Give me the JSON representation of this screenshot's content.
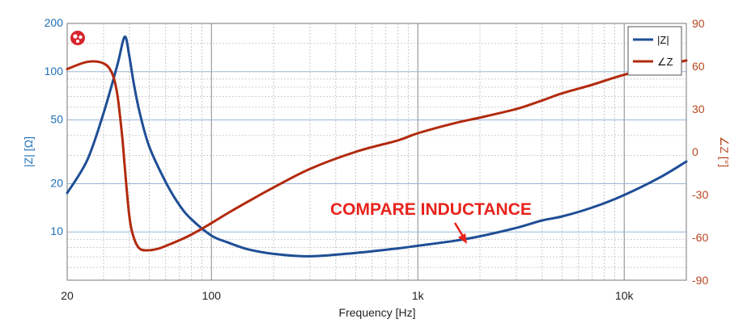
{
  "chart_data": {
    "type": "line",
    "title": "",
    "xlabel": "Frequency [Hz]",
    "ylabel_left": "|Z| [Ω]",
    "ylabel_right": "∠Z [°]",
    "x_scale": "log",
    "y_left_scale": "log",
    "xlim": [
      20,
      20000
    ],
    "ylim_left": [
      5,
      200
    ],
    "ylim_right": [
      -90,
      90
    ],
    "x_ticks": [
      {
        "value": 20,
        "label": "20"
      },
      {
        "value": 100,
        "label": "100"
      },
      {
        "value": 1000,
        "label": "1k"
      },
      {
        "value": 10000,
        "label": "10k"
      }
    ],
    "y_left_ticks": [
      {
        "value": 200,
        "label": "200"
      },
      {
        "value": 100,
        "label": "100"
      },
      {
        "value": 50,
        "label": "50"
      },
      {
        "value": 20,
        "label": "20"
      },
      {
        "value": 10,
        "label": "10"
      }
    ],
    "y_right_ticks": [
      {
        "value": 90,
        "label": "90"
      },
      {
        "value": 60,
        "label": "60"
      },
      {
        "value": 30,
        "label": "30"
      },
      {
        "value": 0,
        "label": "0"
      },
      {
        "value": -30,
        "label": "-30"
      },
      {
        "value": -60,
        "label": "-60"
      },
      {
        "value": -90,
        "label": "-90"
      }
    ],
    "grid": true,
    "legend_position": "top-right",
    "colors": {
      "impedance": "#1f4e96",
      "phase": "#b22a0e",
      "annotation": "#e8231c",
      "left_axis": "#1f6fb5",
      "right_axis": "#b8461e"
    },
    "series": [
      {
        "name": "|Z|",
        "axis": "left",
        "x": [
          20,
          25,
          30,
          35,
          38,
          40,
          42,
          45,
          50,
          60,
          70,
          80,
          100,
          120,
          150,
          200,
          300,
          500,
          800,
          1000,
          1500,
          2000,
          3000,
          4000,
          5000,
          7000,
          10000,
          15000,
          20000
        ],
        "y": [
          17.5,
          28,
          55,
          110,
          165,
          125,
          85,
          55,
          34,
          20.5,
          14.7,
          12,
          9.5,
          8.6,
          7.8,
          7.3,
          7.05,
          7.4,
          7.9,
          8.2,
          8.8,
          9.4,
          10.6,
          11.8,
          12.5,
          14.2,
          17,
          22,
          27.5
        ]
      },
      {
        "name": "∠Z",
        "axis": "right",
        "x": [
          20,
          25,
          30,
          33,
          35,
          37,
          38,
          40,
          42,
          45,
          50,
          55,
          60,
          70,
          80,
          100,
          120,
          150,
          200,
          300,
          500,
          800,
          1000,
          1500,
          2000,
          3000,
          4000,
          5000,
          7000,
          10000,
          15000,
          20000
        ],
        "y": [
          58,
          63,
          62,
          55,
          40,
          10,
          -10,
          -45,
          -60,
          -68,
          -69,
          -68,
          -66,
          -62,
          -58,
          -50,
          -43,
          -35,
          -25,
          -12,
          0,
          8,
          13,
          20,
          24,
          30,
          36,
          41,
          47,
          54,
          60,
          64
        ]
      }
    ],
    "annotations": [
      {
        "text": "COMPARE INDUCTANCE",
        "points_to": {
          "series": "|Z|",
          "x": 1750
        }
      }
    ],
    "logo_icon": "brand-logo-icon"
  }
}
